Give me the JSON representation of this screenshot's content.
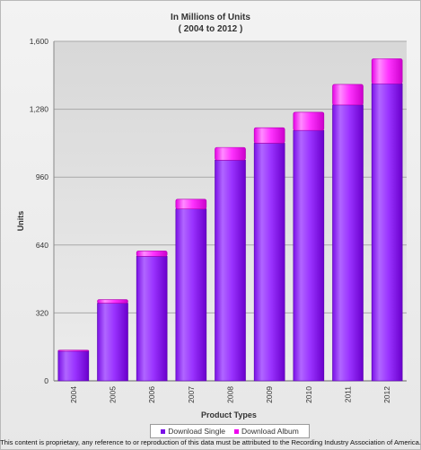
{
  "chart_data": {
    "type": "bar",
    "stacked": true,
    "title": "In Millions of Units",
    "subtitle": "( 2004 to 2012 )",
    "xlabel": "Product Types",
    "ylabel": "Units",
    "ylim": [
      0,
      1600
    ],
    "yticks": [
      "0",
      "320",
      "640",
      "960",
      "1,280",
      "1,600"
    ],
    "categories": [
      "2004",
      "2005",
      "2006",
      "2007",
      "2008",
      "2009",
      "2010",
      "2011",
      "2012"
    ],
    "series": [
      {
        "name": "Download Single",
        "color": "#9933ff",
        "values": [
          140,
          366,
          587,
          810,
          1040,
          1120,
          1180,
          1300,
          1400
        ]
      },
      {
        "name": "Download Album",
        "color": "#ff33ff",
        "values": [
          5,
          17,
          25,
          46,
          60,
          73,
          86,
          97,
          118
        ]
      }
    ],
    "grid": true,
    "legend_position": "bottom"
  },
  "footer": "This content is proprietary, any reference to or reproduction of this data must be attributed to the Recording Industry Association of America."
}
